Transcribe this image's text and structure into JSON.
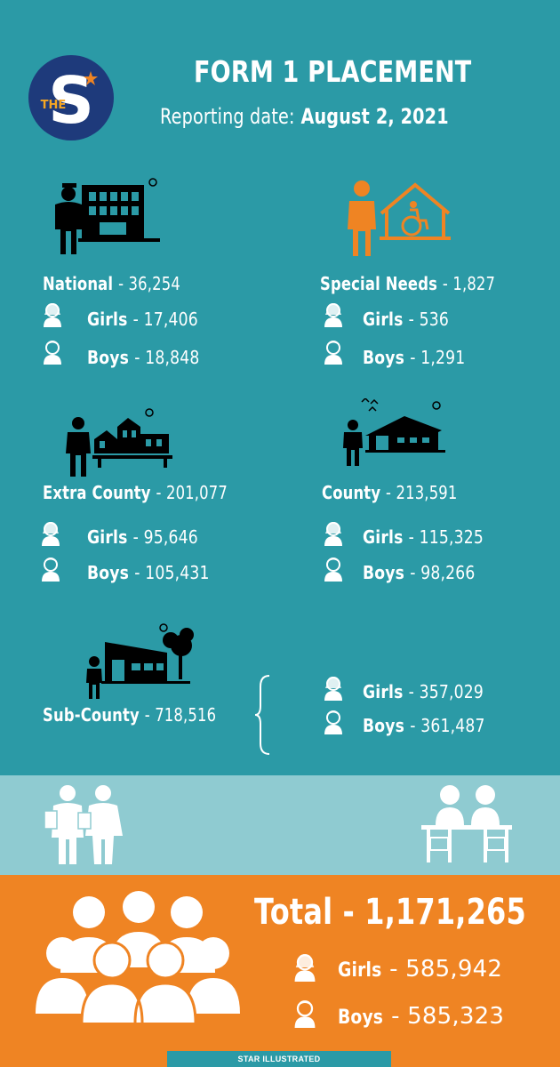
{
  "logo": {
    "letter": "S",
    "small": "THE"
  },
  "header": {
    "title": "FORM 1 PLACEMENT",
    "subtitle_label": "Reporting date:",
    "subtitle_date": "August 2, 2021"
  },
  "categories": [
    {
      "name": "National",
      "total": "- 36,254",
      "girls_label": "Girls",
      "girls": "- 17,406",
      "boys_label": "Boys",
      "boys": "- 18,848"
    },
    {
      "name": "Special Needs",
      "total": "- 1,827",
      "girls_label": "Girls",
      "girls": "- 536",
      "boys_label": "Boys",
      "boys": "- 1,291"
    },
    {
      "name": "Extra County",
      "total": "- 201,077",
      "girls_label": "Girls",
      "girls": "- 95,646",
      "boys_label": "Boys",
      "boys": "- 105,431"
    },
    {
      "name": "County",
      "total": "- 213,591",
      "girls_label": "Girls",
      "girls": "- 115,325",
      "boys_label": "Boys",
      "boys": "- 98,266"
    },
    {
      "name": "Sub-County",
      "total": "- 718,516",
      "girls_label": "Girls",
      "girls": "- 357,029",
      "boys_label": "Boys",
      "boys": "- 361,487"
    }
  ],
  "totals": {
    "label": "Total - 1,171,265",
    "girls_label": "Girls",
    "girls": "- 585,942",
    "boys_label": "Boys",
    "boys": "- 585,323"
  },
  "footer": {
    "credit": "STAR ILLUSTRATED"
  },
  "colors": {
    "teal": "#2b9aa6",
    "light_teal": "#8fcbd1",
    "orange": "#ef8423",
    "navy": "#1e3a7b",
    "icon_orange": "#ef8423"
  }
}
